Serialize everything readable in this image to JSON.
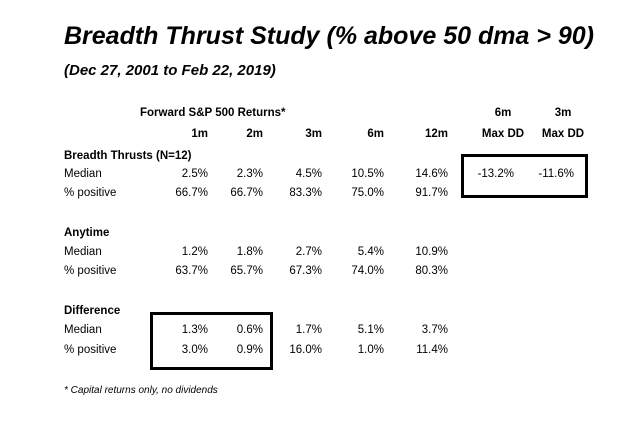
{
  "title": "Breadth Thrust Study (% above 50 dma > 90)",
  "subtitle": "(Dec 27, 2001 to Feb 22, 2019)",
  "header": {
    "forward_label": "Forward S&P 500 Returns*",
    "dd_6m_top": "6m",
    "dd_6m_bottom": "Max DD",
    "dd_3m_top": "3m",
    "dd_3m_bottom": "Max DD",
    "columns": [
      "1m",
      "2m",
      "3m",
      "6m",
      "12m"
    ]
  },
  "sections": {
    "breadth": {
      "heading": "Breadth Thrusts (N=12)",
      "median_label": "Median",
      "median": [
        "2.5%",
        "2.3%",
        "4.5%",
        "10.5%",
        "14.6%"
      ],
      "median_dd": [
        "-13.2%",
        "-11.6%"
      ],
      "positive_label": "% positive",
      "positive": [
        "66.7%",
        "66.7%",
        "83.3%",
        "75.0%",
        "91.7%"
      ]
    },
    "anytime": {
      "heading": "Anytime",
      "median_label": "Median",
      "median": [
        "1.2%",
        "1.8%",
        "2.7%",
        "5.4%",
        "10.9%"
      ],
      "positive_label": "% positive",
      "positive": [
        "63.7%",
        "65.7%",
        "67.3%",
        "74.0%",
        "80.3%"
      ]
    },
    "difference": {
      "heading": "Difference",
      "median_label": "Median",
      "median": [
        "1.3%",
        "0.6%",
        "1.7%",
        "5.1%",
        "3.7%"
      ],
      "positive_label": "% positive",
      "positive": [
        "3.0%",
        "0.9%",
        "16.0%",
        "1.0%",
        "11.4%"
      ]
    }
  },
  "footnote": "* Capital returns only, no dividends"
}
